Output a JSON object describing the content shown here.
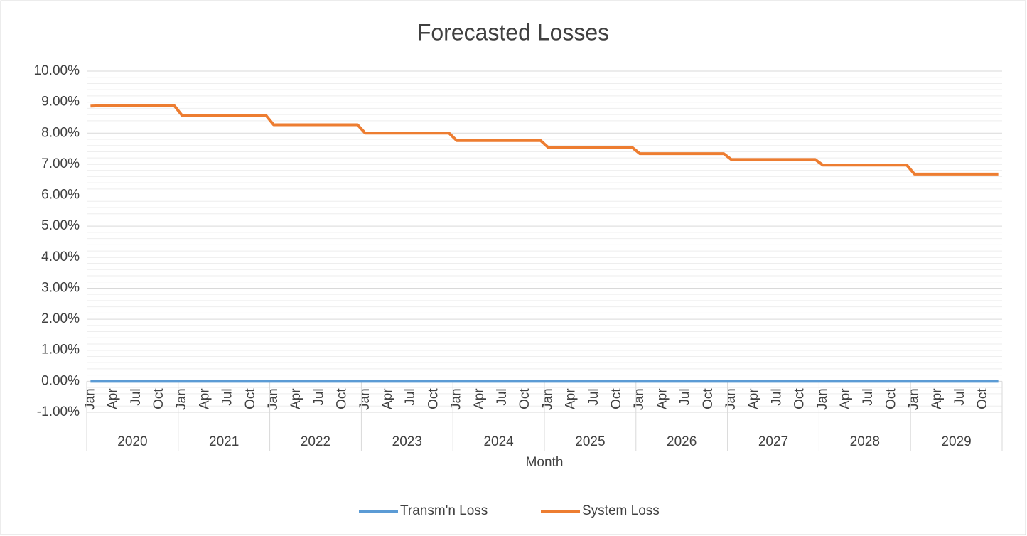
{
  "chart_data": {
    "type": "line",
    "title": "Forecasted Losses",
    "x_label": "Month",
    "categories": [
      "Jan",
      null,
      null,
      "Apr",
      null,
      null,
      "Jul",
      null,
      null,
      "Oct",
      null,
      null,
      "Jan",
      null,
      null,
      "Apr",
      null,
      null,
      "Jul",
      null,
      null,
      "Oct",
      null,
      null,
      "Jan",
      null,
      null,
      "Apr",
      null,
      null,
      "Jul",
      null,
      null,
      "Oct",
      null,
      null,
      "Jan",
      null,
      null,
      "Apr",
      null,
      null,
      "Jul",
      null,
      null,
      "Oct",
      null,
      null,
      "Jan",
      null,
      null,
      "Apr",
      null,
      null,
      "Jul",
      null,
      null,
      "Oct",
      null,
      null,
      "Jan",
      null,
      null,
      "Apr",
      null,
      null,
      "Jul",
      null,
      null,
      "Oct",
      null,
      null,
      "Jan",
      null,
      null,
      "Apr",
      null,
      null,
      "Jul",
      null,
      null,
      "Oct",
      null,
      null,
      "Jan",
      null,
      null,
      "Apr",
      null,
      null,
      "Jul",
      null,
      null,
      "Oct",
      null,
      null,
      "Jan",
      null,
      null,
      "Apr",
      null,
      null,
      "Jul",
      null,
      null,
      "Oct",
      null,
      null,
      "Jan",
      null,
      null,
      "Apr",
      null,
      null,
      "Jul",
      null,
      null,
      "Oct",
      null,
      null
    ],
    "groups": [
      "2020",
      "2021",
      "2022",
      "2023",
      "2024",
      "2025",
      "2026",
      "2027",
      "2028",
      "2029"
    ],
    "series": [
      {
        "name": "Transm'n Loss",
        "color": "#5b9bd5",
        "values": [
          0,
          0,
          0,
          0,
          0,
          0,
          0,
          0,
          0,
          0,
          0,
          0,
          0,
          0,
          0,
          0,
          0,
          0,
          0,
          0,
          0,
          0,
          0,
          0,
          0,
          0,
          0,
          0,
          0,
          0,
          0,
          0,
          0,
          0,
          0,
          0,
          0,
          0,
          0,
          0,
          0,
          0,
          0,
          0,
          0,
          0,
          0,
          0,
          0,
          0,
          0,
          0,
          0,
          0,
          0,
          0,
          0,
          0,
          0,
          0,
          0,
          0,
          0,
          0,
          0,
          0,
          0,
          0,
          0,
          0,
          0,
          0,
          0,
          0,
          0,
          0,
          0,
          0,
          0,
          0,
          0,
          0,
          0,
          0,
          0,
          0,
          0,
          0,
          0,
          0,
          0,
          0,
          0,
          0,
          0,
          0,
          0,
          0,
          0,
          0,
          0,
          0,
          0,
          0,
          0,
          0,
          0,
          0,
          0,
          0,
          0,
          0,
          0,
          0,
          0,
          0,
          0,
          0,
          0,
          0
        ]
      },
      {
        "name": "System Loss",
        "color": "#ed7d31",
        "values": [
          8.87,
          8.88,
          8.88,
          8.88,
          8.88,
          8.88,
          8.88,
          8.88,
          8.88,
          8.88,
          8.88,
          8.88,
          8.57,
          8.57,
          8.57,
          8.57,
          8.57,
          8.57,
          8.57,
          8.57,
          8.57,
          8.57,
          8.57,
          8.57,
          8.27,
          8.27,
          8.27,
          8.27,
          8.27,
          8.27,
          8.27,
          8.27,
          8.27,
          8.27,
          8.27,
          8.27,
          8.0,
          8.0,
          8.0,
          8.0,
          8.0,
          8.0,
          8.0,
          8.0,
          8.0,
          8.0,
          8.0,
          8.0,
          7.76,
          7.76,
          7.76,
          7.76,
          7.76,
          7.76,
          7.76,
          7.76,
          7.76,
          7.76,
          7.76,
          7.76,
          7.54,
          7.54,
          7.54,
          7.54,
          7.54,
          7.54,
          7.54,
          7.54,
          7.54,
          7.54,
          7.54,
          7.54,
          7.34,
          7.34,
          7.34,
          7.34,
          7.34,
          7.34,
          7.34,
          7.34,
          7.34,
          7.34,
          7.34,
          7.34,
          7.15,
          7.15,
          7.15,
          7.15,
          7.15,
          7.15,
          7.15,
          7.15,
          7.15,
          7.15,
          7.15,
          7.15,
          6.97,
          6.97,
          6.97,
          6.97,
          6.97,
          6.97,
          6.97,
          6.97,
          6.97,
          6.97,
          6.97,
          6.97,
          6.68,
          6.68,
          6.68,
          6.68,
          6.68,
          6.68,
          6.68,
          6.68,
          6.68,
          6.68,
          6.68,
          6.68
        ]
      }
    ],
    "ylim": [
      -1,
      10
    ],
    "yticks": [
      {
        "value": -1,
        "label": "-1.00%"
      },
      {
        "value": 0,
        "label": "0.00%"
      },
      {
        "value": 1,
        "label": "1.00%"
      },
      {
        "value": 2,
        "label": "2.00%"
      },
      {
        "value": 3,
        "label": "3.00%"
      },
      {
        "value": 4,
        "label": "4.00%"
      },
      {
        "value": 5,
        "label": "5.00%"
      },
      {
        "value": 6,
        "label": "6.00%"
      },
      {
        "value": 7,
        "label": "7.00%"
      },
      {
        "value": 8,
        "label": "8.00%"
      },
      {
        "value": 9,
        "label": "9.00%"
      },
      {
        "value": 10,
        "label": "10.00%"
      }
    ],
    "grid": true,
    "legend": "bottom"
  }
}
